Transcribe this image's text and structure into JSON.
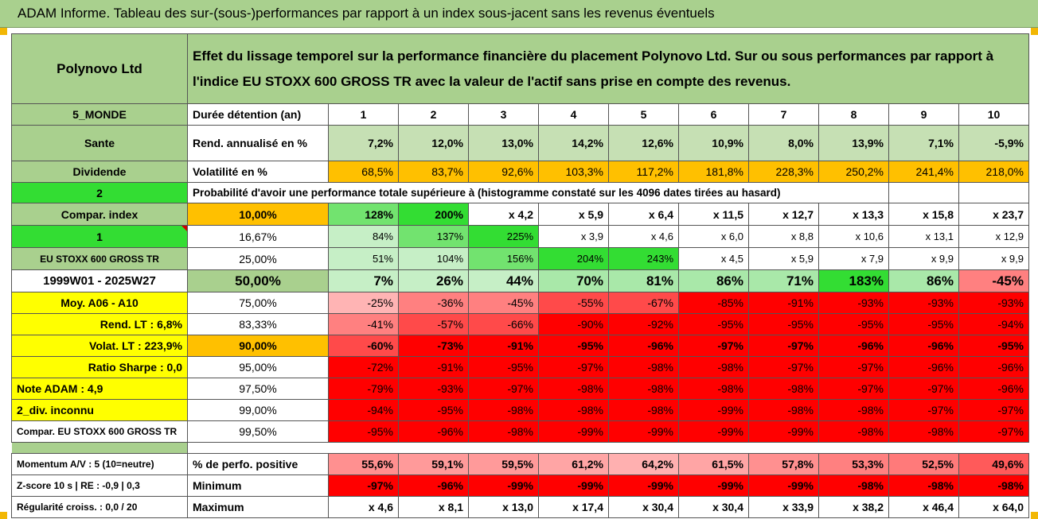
{
  "title": "ADAM Informe. Tableau des sur-(sous-)performances par rapport à un index sous-jacent sans les revenus éventuels",
  "colors": {
    "accent_green": "#a9d08e",
    "bright_green": "#33dd33",
    "red": "#ff0000",
    "orange": "#ffc000",
    "yellow": "#ffff00"
  },
  "header": {
    "company": "Polynovo Ltd",
    "description": "Effet du lissage temporel sur la performance financière du placement Polynovo Ltd. Sur ou sous performances par rapport à l'indice EU STOXX 600 GROSS TR avec la valeur de l'actif sans prise en compte des revenus."
  },
  "labels": {
    "region": "5_MONDE",
    "sector": "Sante",
    "dividend": "Dividende",
    "two": "2",
    "compar_index": "Compar. index",
    "one": "1",
    "index_name": "EU STOXX 600 GROSS TR",
    "period": "1999W01 - 2025W27",
    "moy": "Moy. A06 - A10",
    "rend_lt": "Rend. LT :   6,8%",
    "volat_lt": "Volat. LT :   223,9%",
    "sharpe": "Ratio Sharpe :   0,0",
    "note": "Note ADAM : 4,9",
    "div_inconnu": "2_div. inconnu",
    "compar_name": "Compar. EU STOXX 600 GROSS TR",
    "momentum": "Momentum A/V : 5 (10=neutre)",
    "zscore": "Z-score 10 s | RE : -0,9 | 0,3",
    "regularite": "Régularité croiss. : 0,0 / 20"
  },
  "row_headers": {
    "duration": "Durée détention (an)",
    "rend": "Rend. annualisé en %",
    "volat": "Volatilité en %",
    "proba": "Probabilité d'avoir une performance totale supérieure à (histogramme constaté sur les 4096 dates tirées au hasard)",
    "pct_positive": "% de perfo. positive",
    "minimum": "Minimum",
    "maximum": "Maximum"
  },
  "durations": [
    "1",
    "2",
    "3",
    "4",
    "5",
    "6",
    "7",
    "8",
    "9",
    "10"
  ],
  "rend": [
    "7,2%",
    "12,0%",
    "13,0%",
    "14,2%",
    "12,6%",
    "10,9%",
    "8,0%",
    "13,9%",
    "7,1%",
    "-5,9%"
  ],
  "volat": [
    "68,5%",
    "83,7%",
    "92,6%",
    "103,3%",
    "117,2%",
    "181,8%",
    "228,3%",
    "250,2%",
    "241,4%",
    "218,0%"
  ],
  "quantiles": [
    {
      "q": "10,00%",
      "values": [
        "128%",
        "200%",
        "x 4,2",
        "x 5,9",
        "x 6,4",
        "x 11,5",
        "x 12,7",
        "x 13,3",
        "x 15,8",
        "x 23,7"
      ]
    },
    {
      "q": "16,67%",
      "values": [
        "84%",
        "137%",
        "225%",
        "x 3,9",
        "x 4,6",
        "x 6,0",
        "x 8,8",
        "x 10,6",
        "x 13,1",
        "x 12,9"
      ]
    },
    {
      "q": "25,00%",
      "values": [
        "51%",
        "104%",
        "156%",
        "204%",
        "243%",
        "x 4,5",
        "x 5,9",
        "x 7,9",
        "x 9,9",
        "x 9,9"
      ]
    },
    {
      "q": "50,00%",
      "values": [
        "7%",
        "26%",
        "44%",
        "70%",
        "81%",
        "86%",
        "71%",
        "183%",
        "86%",
        "-45%"
      ]
    },
    {
      "q": "75,00%",
      "values": [
        "-25%",
        "-36%",
        "-45%",
        "-55%",
        "-67%",
        "-85%",
        "-91%",
        "-93%",
        "-93%",
        "-93%"
      ]
    },
    {
      "q": "83,33%",
      "values": [
        "-41%",
        "-57%",
        "-66%",
        "-90%",
        "-92%",
        "-95%",
        "-95%",
        "-95%",
        "-95%",
        "-94%"
      ]
    },
    {
      "q": "90,00%",
      "values": [
        "-60%",
        "-73%",
        "-91%",
        "-95%",
        "-96%",
        "-97%",
        "-97%",
        "-96%",
        "-96%",
        "-95%"
      ]
    },
    {
      "q": "95,00%",
      "values": [
        "-72%",
        "-91%",
        "-95%",
        "-97%",
        "-98%",
        "-98%",
        "-97%",
        "-97%",
        "-96%",
        "-96%"
      ]
    },
    {
      "q": "97,50%",
      "values": [
        "-79%",
        "-93%",
        "-97%",
        "-98%",
        "-98%",
        "-98%",
        "-98%",
        "-97%",
        "-97%",
        "-96%"
      ]
    },
    {
      "q": "99,00%",
      "values": [
        "-94%",
        "-95%",
        "-98%",
        "-98%",
        "-98%",
        "-99%",
        "-98%",
        "-98%",
        "-97%",
        "-97%"
      ]
    },
    {
      "q": "99,50%",
      "values": [
        "-95%",
        "-96%",
        "-98%",
        "-99%",
        "-99%",
        "-99%",
        "-99%",
        "-98%",
        "-98%",
        "-97%"
      ]
    }
  ],
  "pct_positive": [
    "55,6%",
    "59,1%",
    "59,5%",
    "61,2%",
    "64,2%",
    "61,5%",
    "57,8%",
    "53,3%",
    "52,5%",
    "49,6%"
  ],
  "minimum": [
    "-97%",
    "-96%",
    "-99%",
    "-99%",
    "-99%",
    "-99%",
    "-99%",
    "-98%",
    "-98%",
    "-98%"
  ],
  "maximum": [
    "x 4,6",
    "x 8,1",
    "x 13,0",
    "x 17,4",
    "x 30,4",
    "x 30,4",
    "x 33,9",
    "x 38,2",
    "x 46,4",
    "x 64,0"
  ]
}
